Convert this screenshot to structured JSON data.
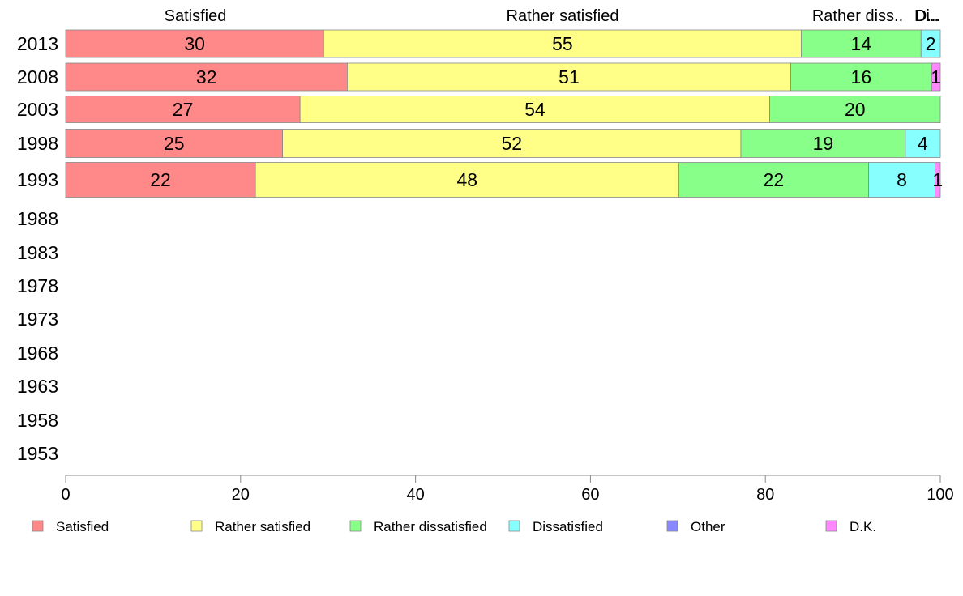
{
  "chart_data": {
    "type": "bar",
    "orientation": "horizontal",
    "stacked": true,
    "categories": [
      "2013",
      "2008",
      "2003",
      "1998",
      "1993",
      "1988",
      "1983",
      "1978",
      "1973",
      "1968",
      "1963",
      "1958",
      "1953"
    ],
    "series": [
      {
        "name": "Satisfied",
        "color": "#ff8888",
        "values": [
          30,
          32,
          27,
          25,
          22,
          null,
          null,
          null,
          null,
          null,
          null,
          null,
          null
        ],
        "plotted": [
          29.5,
          32.2,
          26.8,
          24.8,
          21.7,
          null,
          null,
          null,
          null,
          null,
          null,
          null,
          null
        ]
      },
      {
        "name": "Rather satisfied",
        "color": "#ffff88",
        "values": [
          55,
          51,
          54,
          52,
          48,
          null,
          null,
          null,
          null,
          null,
          null,
          null,
          null
        ],
        "plotted": [
          54.6,
          50.7,
          53.7,
          52.4,
          48.4,
          null,
          null,
          null,
          null,
          null,
          null,
          null,
          null
        ]
      },
      {
        "name": "Rather dissatisfied",
        "color": "#88ff88",
        "values": [
          14,
          16,
          20,
          19,
          22,
          null,
          null,
          null,
          null,
          null,
          null,
          null,
          null
        ],
        "plotted": [
          13.7,
          16.1,
          19.5,
          18.8,
          21.7,
          null,
          null,
          null,
          null,
          null,
          null,
          null,
          null
        ]
      },
      {
        "name": "Dissatisfied",
        "color": "#88ffff",
        "values": [
          2,
          null,
          null,
          4,
          8,
          null,
          null,
          null,
          null,
          null,
          null,
          null,
          null
        ],
        "plotted": [
          2.2,
          0,
          0,
          4.0,
          7.6,
          null,
          null,
          null,
          null,
          null,
          null,
          null,
          null
        ]
      },
      {
        "name": "Other",
        "color": "#8888ff",
        "values": [
          null,
          null,
          null,
          null,
          null,
          null,
          null,
          null,
          null,
          null,
          null,
          null,
          null
        ],
        "plotted": [
          0,
          0,
          0,
          0,
          0,
          null,
          null,
          null,
          null,
          null,
          null,
          null,
          null
        ]
      },
      {
        "name": "D.K.",
        "color": "#ff88ff",
        "values": [
          null,
          1,
          null,
          null,
          1,
          null,
          null,
          null,
          null,
          null,
          null,
          null,
          null
        ],
        "plotted": [
          0,
          1.0,
          0,
          0,
          0.6,
          null,
          null,
          null,
          null,
          null,
          null,
          null,
          null
        ]
      }
    ],
    "top_labels": [
      "Satisfied",
      "Rather satisfied",
      "Rather diss..",
      "Di..",
      "D..."
    ],
    "xticks": [
      0,
      20,
      40,
      60,
      80,
      100
    ],
    "xlim": [
      0,
      100
    ],
    "xlabel": "",
    "ylabel": "",
    "title": "",
    "grid": false,
    "legend_position": "bottom"
  }
}
